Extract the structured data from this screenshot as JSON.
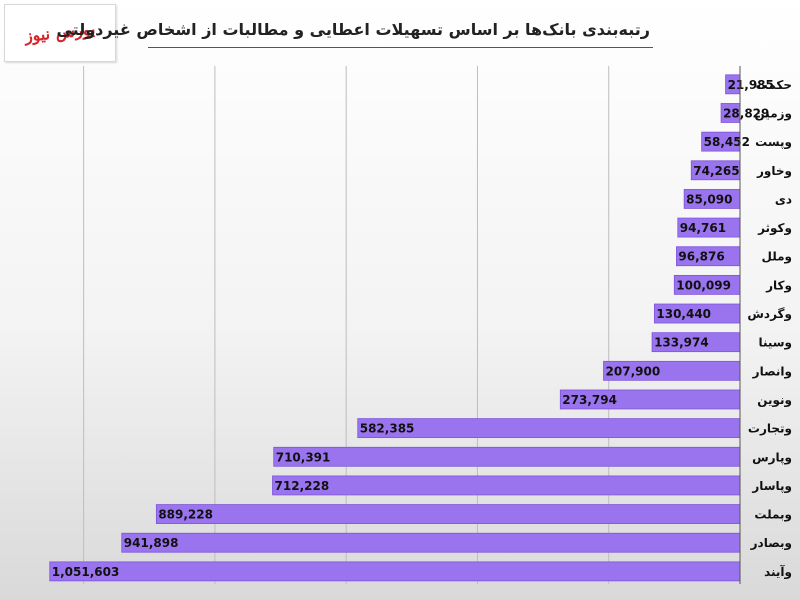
{
  "logo": {
    "text": "بورس نیوز"
  },
  "chart_data": {
    "type": "bar",
    "orientation": "horizontal",
    "title": "رتبه‌بندی بانک‌ها بر اساس تسهیلات اعطایی و مطالبات از اشخاص غیردولتی",
    "categories": [
      "حکمت",
      "وزمین",
      "وپست",
      "وخاور",
      "دی",
      "وکوثر",
      "وملل",
      "وکار",
      "وگردش",
      "وسینا",
      "وانصار",
      "ونوین",
      "وتجارت",
      "وپارس",
      "وپاسار",
      "وبملت",
      "وبصادر",
      "وآیند"
    ],
    "values": [
      21985,
      28829,
      58452,
      74265,
      85090,
      94761,
      96876,
      100099,
      130440,
      133974,
      207900,
      273794,
      582385,
      710391,
      712228,
      889228,
      941898,
      1051603
    ],
    "value_labels": [
      "21,985",
      "28,829",
      "58,452",
      "74,265",
      "85,090",
      "94,761",
      "96,876",
      "100,099",
      "130,440",
      "133,974",
      "207,900",
      "273,794",
      "582,385",
      "710,391",
      "712,228",
      "889,228",
      "941,898",
      "1,051,603"
    ],
    "xlim": [
      0,
      1100000
    ],
    "grid": true,
    "bar_color": "#9a74ef",
    "bar_edge_color": "#7d55d8"
  }
}
